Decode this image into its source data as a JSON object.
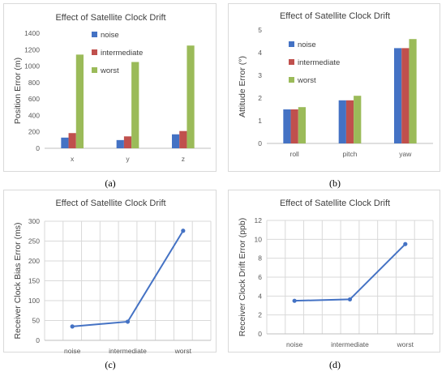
{
  "captions": [
    "(a)",
    "(b)",
    "(c)",
    "(d)"
  ],
  "chart_data": [
    {
      "type": "bar",
      "title": "Effect of Satellite Clock Drift",
      "ylabel": "Position Error (m)",
      "xlabel": "",
      "categories": [
        "x",
        "y",
        "z"
      ],
      "ylim": [
        0,
        1400
      ],
      "yticks": [
        "0",
        "200",
        "400",
        "600",
        "800",
        "1000",
        "1200",
        "1400"
      ],
      "grid": false,
      "legend_position": "top-left",
      "series": [
        {
          "name": "noise",
          "color": "#4472c4",
          "values": [
            130,
            100,
            170
          ]
        },
        {
          "name": "intermediate",
          "color": "#c0504d",
          "values": [
            185,
            145,
            210
          ]
        },
        {
          "name": "worst",
          "color": "#9bbb59",
          "values": [
            1140,
            1050,
            1250
          ]
        }
      ]
    },
    {
      "type": "bar",
      "title": "Effect of Satellite Clock Drift",
      "ylabel": "Attitude Error (°)",
      "xlabel": "",
      "categories": [
        "roll",
        "pitch",
        "yaw"
      ],
      "ylim": [
        0,
        5
      ],
      "yticks": [
        "0",
        "1",
        "2",
        "3",
        "4",
        "5"
      ],
      "grid": false,
      "legend_position": "top-left",
      "series": [
        {
          "name": "noise",
          "color": "#4472c4",
          "values": [
            1.5,
            1.9,
            4.2
          ]
        },
        {
          "name": "intermediate",
          "color": "#c0504d",
          "values": [
            1.5,
            1.9,
            4.2
          ]
        },
        {
          "name": "worst",
          "color": "#9bbb59",
          "values": [
            1.6,
            2.1,
            4.6
          ]
        }
      ]
    },
    {
      "type": "line",
      "title": "Effect of  Satellite Clock Drift",
      "ylabel": "Receiver Clock Bias Error (ms)",
      "xlabel": "",
      "categories": [
        "noise",
        "intermediate",
        "worst"
      ],
      "ylim": [
        0,
        300
      ],
      "yticks": [
        "0",
        "50",
        "100",
        "150",
        "200",
        "250",
        "300"
      ],
      "grid": true,
      "color": "#4472c4",
      "values": [
        35,
        47,
        276
      ]
    },
    {
      "type": "line",
      "title": "Effect of  Satellite Clock Drift",
      "ylabel": "Receiver Clock Drift Error (ppb)",
      "xlabel": "",
      "categories": [
        "noise",
        "intermediate",
        "worst"
      ],
      "ylim": [
        0,
        12
      ],
      "yticks": [
        "0",
        "2",
        "4",
        "6",
        "8",
        "10",
        "12"
      ],
      "grid": true,
      "color": "#4472c4",
      "values": [
        3.5,
        3.65,
        9.5
      ]
    }
  ]
}
